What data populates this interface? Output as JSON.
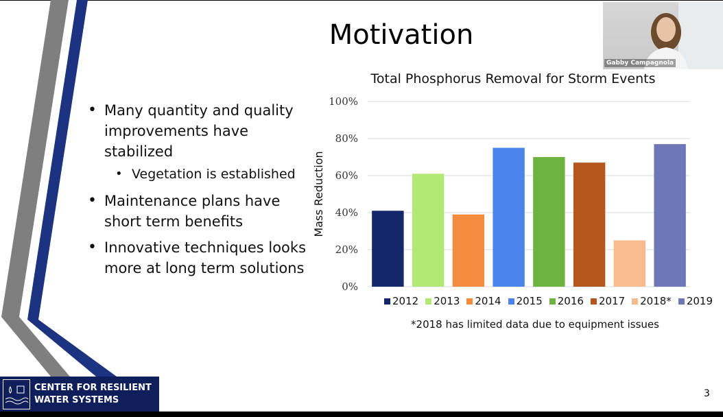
{
  "slide": {
    "title": "Motivation",
    "page_number": "3"
  },
  "bullets": {
    "item1": "Many quantity and quality improvements have stabilized",
    "item1_sub": "Vegetation is established",
    "item2": "Maintenance plans have short term benefits",
    "item3": "Innovative techniques looks more at long term solutions"
  },
  "video": {
    "participant_name": "Gabby Campagnola"
  },
  "logo": {
    "line1": "CENTER FOR RESILIENT",
    "line2": "WATER SYSTEMS"
  },
  "footnote": "*2018 has limited data due to equipment issues",
  "chart_data": {
    "type": "bar",
    "title": "Total Phosphorus Removal for Storm Events",
    "ylabel": "Mass Reduction",
    "xlabel": "",
    "ylim": [
      0,
      100
    ],
    "yticks": [
      "0%",
      "20%",
      "40%",
      "60%",
      "80%",
      "100%"
    ],
    "grid": true,
    "legend_position": "bottom",
    "categories": [
      "2012",
      "2013",
      "2014",
      "2015",
      "2016",
      "2017",
      "2018*",
      "2019"
    ],
    "values": [
      41,
      61,
      39,
      75,
      70,
      67,
      25,
      77
    ],
    "colors": [
      "#14276b",
      "#b2e874",
      "#f58b3c",
      "#4b84ec",
      "#6db33f",
      "#b5561d",
      "#f9bb8e",
      "#6e78b9"
    ]
  }
}
